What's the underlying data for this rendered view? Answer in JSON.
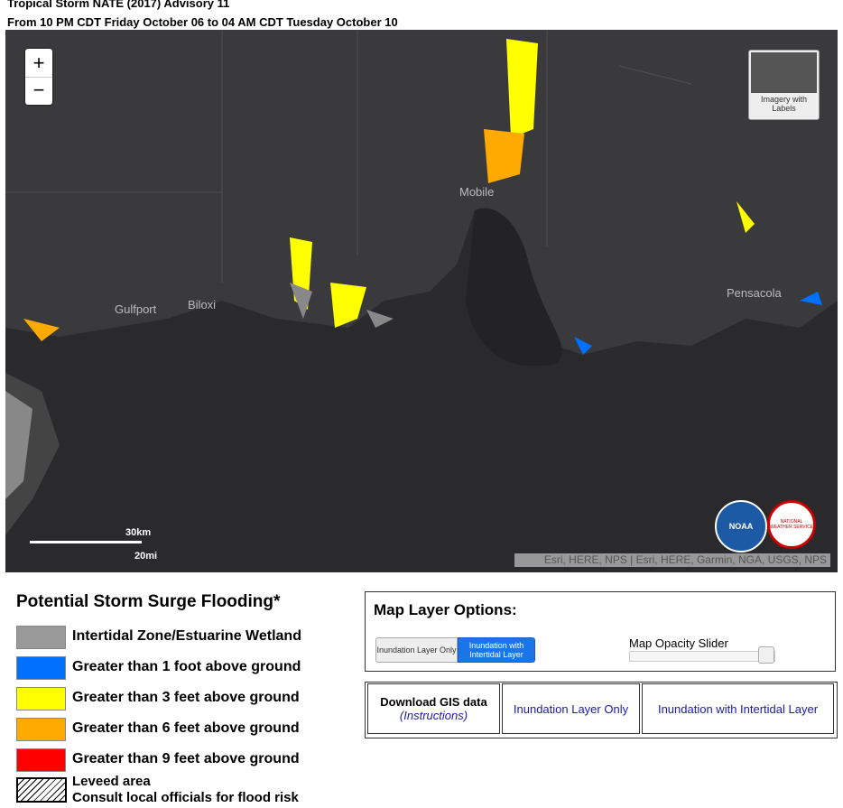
{
  "header": {
    "title": "Tropical Storm NATE (2017) Advisory 11",
    "subtitle": "From 10 PM CDT Friday October 06 to 04 AM CDT Tuesday October 10"
  },
  "map": {
    "zoom_in": "+",
    "zoom_out": "−",
    "basemap_toggle": "Imagery with Labels",
    "places": [
      "Mobile",
      "Gulfport",
      "Biloxi",
      "Pensacola"
    ],
    "scale_km": "30km",
    "scale_mi": "20mi",
    "attribution": "Esri, HERE, NPS | Esri, HERE, Garmin, NGA, USGS, NPS",
    "logos": [
      "NOAA",
      "NATIONAL WEATHER SERVICE"
    ]
  },
  "legend": {
    "title": "Potential Storm Surge Flooding*",
    "items": [
      {
        "label": "Intertidal Zone/Estuarine Wetland",
        "color": "#999999"
      },
      {
        "label": "Greater than 1 foot above ground",
        "color": "#0070ff"
      },
      {
        "label": "Greater than 3 feet above ground",
        "color": "#ffff00"
      },
      {
        "label": "Greater than 6 feet above ground",
        "color": "#ffaa00"
      },
      {
        "label": "Greater than 9 feet above ground",
        "color": "#ff0000"
      }
    ],
    "leveed": [
      "Leveed area",
      "Consult local officials for flood risk"
    ]
  },
  "layer_options": {
    "title": "Map Layer Options:",
    "buttons": [
      "Inundation Layer Only",
      "Inundation with Intertidal Layer"
    ],
    "slider_label": "Map Opacity Slider"
  },
  "downloads": {
    "heading": "Download GIS data",
    "instructions": "(Instructions)",
    "links": [
      "Inundation Layer Only",
      "Inundation with Intertidal Layer"
    ]
  }
}
